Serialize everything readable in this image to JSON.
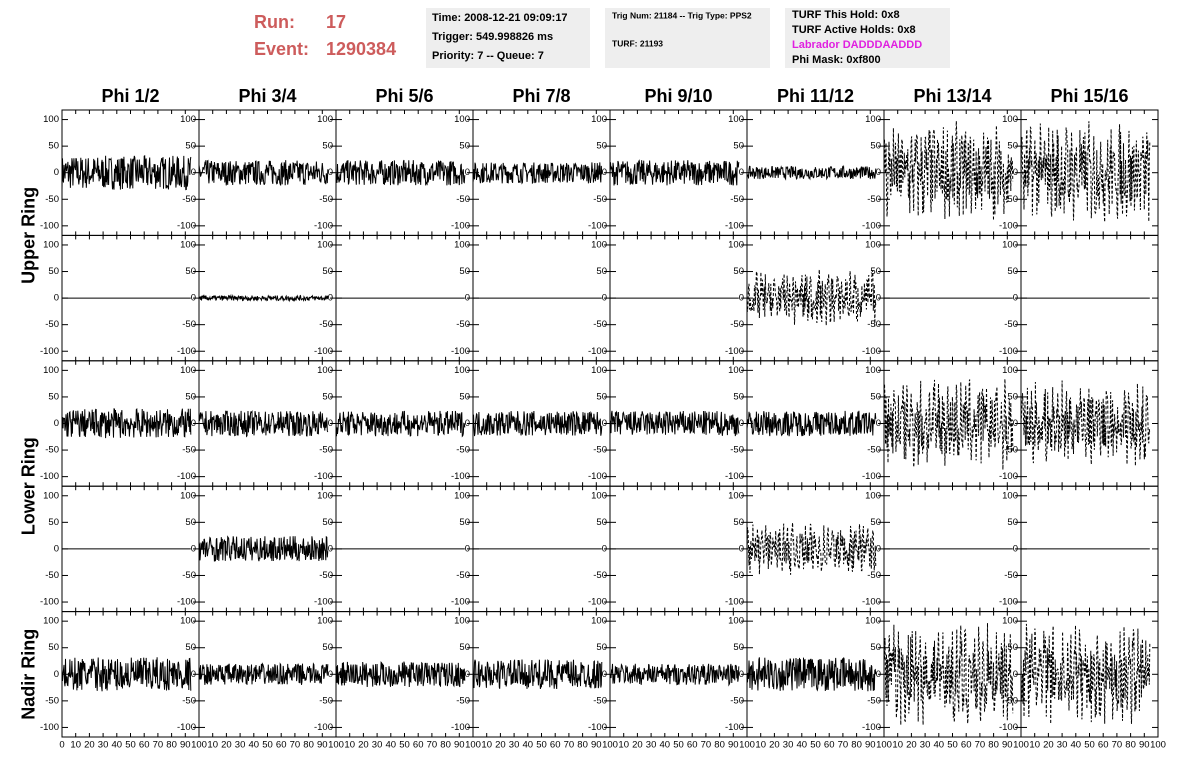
{
  "header": {
    "run_label": "Run:",
    "run": "17",
    "event_label": "Event:",
    "event": "1290384",
    "run_color": "#cd5c5c",
    "time": "Time: 2008-12-21 09:09:17",
    "trigger": "Trigger: 549.998826 ms",
    "priority": "Priority: 7 -- Queue: 7",
    "trig": "Trig Num: 21184 -- Trig Type: PPS2",
    "turf": "TURF: 21193",
    "hold": "TURF This Hold: 0x8",
    "active": "TURF Active Holds: 0x8",
    "labrador": "Labrador DADDDAADDD",
    "labrador_color": "#e020e0",
    "phimask": "Phi Mask: 0xf800"
  },
  "columns": [
    "Phi 1/2",
    "Phi 3/4",
    "Phi 5/6",
    "Phi 7/8",
    "Phi 9/10",
    "Phi 11/12",
    "Phi 13/14",
    "Phi 15/16"
  ],
  "row_groups": [
    {
      "label": "Upper Ring",
      "rows": 2
    },
    {
      "label": "Lower Ring",
      "rows": 2
    },
    {
      "label": "Nadir Ring",
      "rows": 1
    }
  ],
  "ylim": [
    -118,
    118
  ],
  "yticks": [
    -100,
    -50,
    0,
    50,
    100
  ],
  "xlim": [
    0,
    100
  ],
  "xticks": [
    0,
    10,
    20,
    30,
    40,
    50,
    60,
    70,
    80,
    90,
    100
  ],
  "panels": [
    [
      {
        "amplitude": 40,
        "dashed": false
      },
      {
        "amplitude": 30,
        "dashed": false
      },
      {
        "amplitude": 30,
        "dashed": false
      },
      {
        "amplitude": 25,
        "dashed": false
      },
      {
        "amplitude": 30,
        "dashed": false
      },
      {
        "amplitude": 15,
        "dashed": false
      },
      {
        "amplitude": 90,
        "dashed": true
      },
      {
        "amplitude": 90,
        "dashed": true
      }
    ],
    [
      {
        "amplitude": 0,
        "dashed": false
      },
      {
        "amplitude": 6,
        "dashed": false
      },
      {
        "amplitude": 0,
        "dashed": false
      },
      {
        "amplitude": 0,
        "dashed": false
      },
      {
        "amplitude": 0,
        "dashed": false
      },
      {
        "amplitude": 50,
        "dashed": true
      },
      {
        "amplitude": 0,
        "dashed": false
      },
      {
        "amplitude": 0,
        "dashed": false
      }
    ],
    [
      {
        "amplitude": 35,
        "dashed": false
      },
      {
        "amplitude": 30,
        "dashed": false
      },
      {
        "amplitude": 30,
        "dashed": false
      },
      {
        "amplitude": 30,
        "dashed": false
      },
      {
        "amplitude": 30,
        "dashed": false
      },
      {
        "amplitude": 30,
        "dashed": false
      },
      {
        "amplitude": 80,
        "dashed": true
      },
      {
        "amplitude": 75,
        "dashed": true
      }
    ],
    [
      {
        "amplitude": 0,
        "dashed": false
      },
      {
        "amplitude": 30,
        "dashed": false
      },
      {
        "amplitude": 0,
        "dashed": false
      },
      {
        "amplitude": 0,
        "dashed": false
      },
      {
        "amplitude": 0,
        "dashed": false
      },
      {
        "amplitude": 45,
        "dashed": true
      },
      {
        "amplitude": 0,
        "dashed": false
      },
      {
        "amplitude": 0,
        "dashed": false
      }
    ],
    [
      {
        "amplitude": 40,
        "dashed": false
      },
      {
        "amplitude": 25,
        "dashed": false
      },
      {
        "amplitude": 30,
        "dashed": false
      },
      {
        "amplitude": 35,
        "dashed": false
      },
      {
        "amplitude": 25,
        "dashed": false
      },
      {
        "amplitude": 40,
        "dashed": false
      },
      {
        "amplitude": 90,
        "dashed": true
      },
      {
        "amplitude": 90,
        "dashed": true
      }
    ]
  ]
}
